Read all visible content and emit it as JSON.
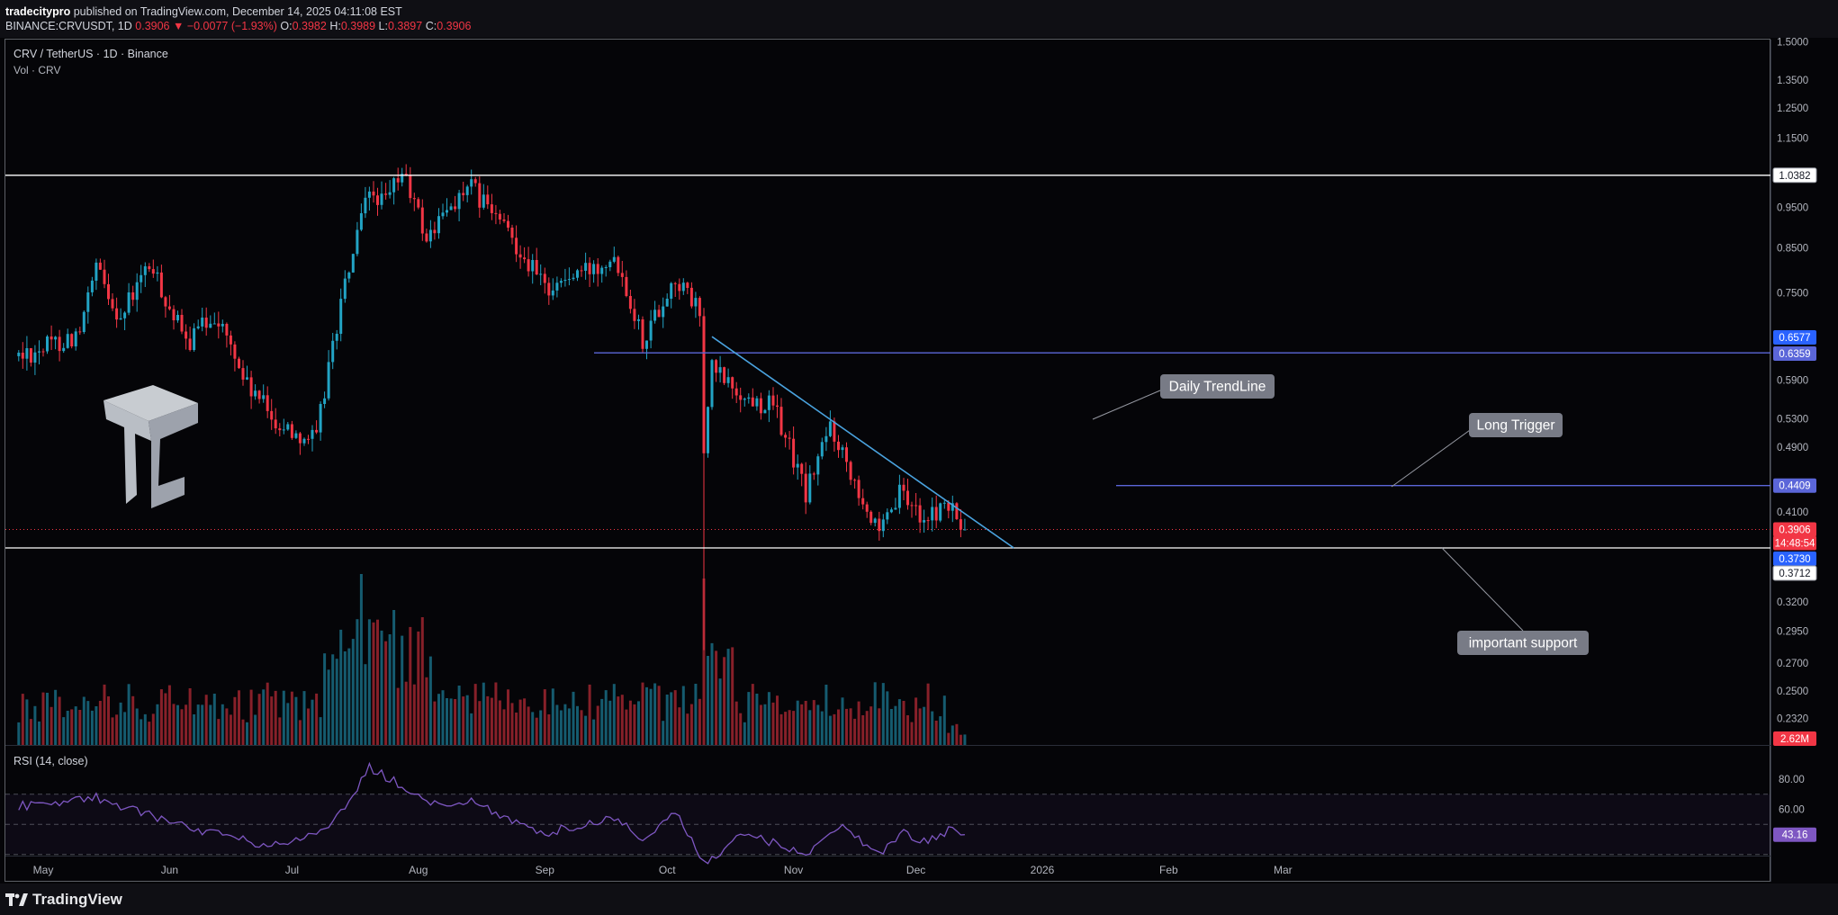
{
  "header": {
    "author": "tradecitypro",
    "published": "published on TradingView.com, December 14, 2025 04:11:08 EST",
    "symbol": "BINANCE:CRVUSDT, 1D",
    "last": "0.3906",
    "change": "▼ −0.0077 (−1.93%)",
    "o_label": "O:",
    "o_value": "0.3982",
    "h_label": "H:",
    "h_value": "0.3989",
    "l_label": "L:",
    "l_value": "0.3897",
    "c_label": "C:",
    "c_value": "0.3906"
  },
  "legend": {
    "pair": "CRV / TetherUS · 1D · Binance",
    "volume": "Vol · CRV",
    "rsi": "RSI (14, close)"
  },
  "footer": {
    "brand": "TradingView",
    "logo_icon": "tradingview-logo-icon"
  },
  "colors": {
    "up": "#22a3c4",
    "down": "#f23645",
    "trendline": "#4aa3df",
    "level": "#5b66d9",
    "support": "#ffffff",
    "rsi": "#7e57c2",
    "label_bg": "#787b86"
  },
  "chart_data": {
    "type": "candlestick",
    "timeframe": "1D",
    "y_scale": "log",
    "price_ticks": [
      "1.5000",
      "1.3500",
      "1.2500",
      "1.1500",
      "0.9500",
      "0.8500",
      "0.7500",
      "0.5900",
      "0.5300",
      "0.4900",
      "0.4100",
      "0.3200",
      "0.2950",
      "0.2700",
      "0.2500",
      "0.2320"
    ],
    "time_ticks": [
      "May",
      "Jun",
      "Jul",
      "Aug",
      "Sep",
      "Oct",
      "Nov",
      "Dec",
      "2026",
      "Feb",
      "Mar"
    ],
    "price_key_points": [
      {
        "date": "2025-04-25",
        "close": 0.63
      },
      {
        "date": "2025-05-10",
        "close": 0.67
      },
      {
        "date": "2025-05-14",
        "close": 0.8
      },
      {
        "date": "2025-05-20",
        "close": 0.7
      },
      {
        "date": "2025-05-27",
        "close": 0.81
      },
      {
        "date": "2025-06-05",
        "close": 0.65
      },
      {
        "date": "2025-06-12",
        "close": 0.71
      },
      {
        "date": "2025-06-20",
        "close": 0.58
      },
      {
        "date": "2025-06-28",
        "close": 0.52
      },
      {
        "date": "2025-07-07",
        "close": 0.5
      },
      {
        "date": "2025-07-15",
        "close": 0.8
      },
      {
        "date": "2025-07-20",
        "close": 0.99
      },
      {
        "date": "2025-07-24",
        "close": 0.96
      },
      {
        "date": "2025-07-28",
        "close": 1.05
      },
      {
        "date": "2025-08-03",
        "close": 0.87
      },
      {
        "date": "2025-08-10",
        "close": 0.97
      },
      {
        "date": "2025-08-14",
        "close": 1.0
      },
      {
        "date": "2025-08-25",
        "close": 0.86
      },
      {
        "date": "2025-09-01",
        "close": 0.76
      },
      {
        "date": "2025-09-12",
        "close": 0.8
      },
      {
        "date": "2025-09-18",
        "close": 0.84
      },
      {
        "date": "2025-09-25",
        "close": 0.66
      },
      {
        "date": "2025-10-03",
        "close": 0.78
      },
      {
        "date": "2025-10-09",
        "close": 0.71
      },
      {
        "date": "2025-10-10",
        "close": 0.48
      },
      {
        "date": "2025-10-12",
        "close": 0.61
      },
      {
        "date": "2025-10-20",
        "close": 0.56
      },
      {
        "date": "2025-10-27",
        "close": 0.55
      },
      {
        "date": "2025-11-04",
        "close": 0.43
      },
      {
        "date": "2025-11-10",
        "close": 0.52
      },
      {
        "date": "2025-11-22",
        "close": 0.38
      },
      {
        "date": "2025-11-27",
        "close": 0.43
      },
      {
        "date": "2025-12-04",
        "close": 0.4
      },
      {
        "date": "2025-12-08",
        "close": 0.42
      },
      {
        "date": "2025-12-13",
        "close": 0.3906
      }
    ],
    "price_labels": [
      {
        "value": "1.0382",
        "kind": "support"
      },
      {
        "value": "0.6577",
        "kind": "ma"
      },
      {
        "value": "0.6359",
        "kind": "level"
      },
      {
        "value": "0.4409",
        "kind": "level"
      },
      {
        "value": "0.3906",
        "kind": "last"
      },
      {
        "value": "14:48:54",
        "kind": "countdown"
      },
      {
        "value": "0.3730",
        "kind": "ma"
      },
      {
        "value": "0.3712",
        "kind": "support"
      }
    ],
    "volume_label": "2.62M",
    "rsi": {
      "period": 14,
      "current_label": "43.16",
      "ticks": [
        "80.00",
        "60.00"
      ],
      "key_points": [
        {
          "date": "2025-04-25",
          "value": 62
        },
        {
          "date": "2025-05-14",
          "value": 68
        },
        {
          "date": "2025-06-05",
          "value": 48
        },
        {
          "date": "2025-06-25",
          "value": 36
        },
        {
          "date": "2025-07-10",
          "value": 45
        },
        {
          "date": "2025-07-20",
          "value": 88
        },
        {
          "date": "2025-08-05",
          "value": 63
        },
        {
          "date": "2025-08-14",
          "value": 65
        },
        {
          "date": "2025-09-01",
          "value": 44
        },
        {
          "date": "2025-09-18",
          "value": 55
        },
        {
          "date": "2025-09-25",
          "value": 40
        },
        {
          "date": "2025-10-03",
          "value": 58
        },
        {
          "date": "2025-10-10",
          "value": 24
        },
        {
          "date": "2025-10-20",
          "value": 44
        },
        {
          "date": "2025-11-05",
          "value": 30
        },
        {
          "date": "2025-11-12",
          "value": 50
        },
        {
          "date": "2025-11-22",
          "value": 31
        },
        {
          "date": "2025-11-28",
          "value": 45
        },
        {
          "date": "2025-12-03",
          "value": 38
        },
        {
          "date": "2025-12-09",
          "value": 46
        },
        {
          "date": "2025-12-13",
          "value": 43.16
        }
      ]
    },
    "drawings": {
      "support_upper": 1.0382,
      "level_upper": 0.6359,
      "long_trigger": 0.4409,
      "support_lower": 0.3712,
      "trendline": {
        "from": {
          "date": "2025-10-12",
          "price": 0.665
        },
        "to": {
          "date": "2025-12-25",
          "price": 0.3712
        }
      }
    },
    "annotations": [
      "Daily TrendLine",
      "Long Trigger",
      "important support"
    ]
  }
}
